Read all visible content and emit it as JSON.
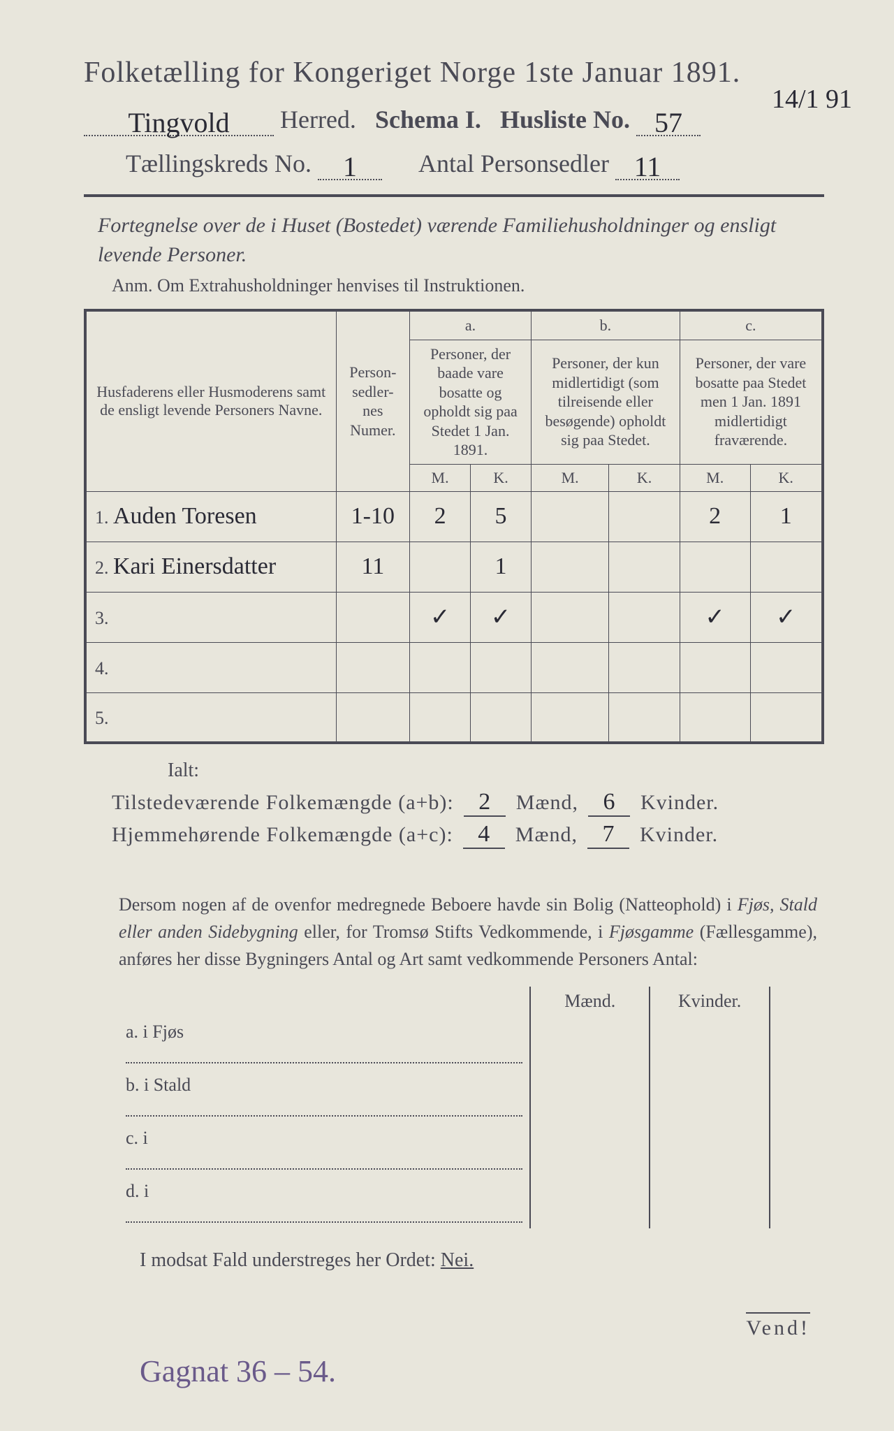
{
  "header": {
    "title": "Folketælling for Kongeriget Norge 1ste Januar 1891.",
    "herred_value": "Tingvold",
    "herred_label": "Herred.",
    "schema_label": "Schema I.",
    "husliste_label": "Husliste No.",
    "husliste_value": "57",
    "side_date": "14/1 91",
    "kreds_label": "Tællingskreds No.",
    "kreds_value": "1",
    "antal_label": "Antal Personsedler",
    "antal_value": "11"
  },
  "subtitle": "Fortegnelse over de i Huset (Bostedet) værende Familiehusholdninger og ensligt levende Personer.",
  "anm": "Anm.  Om Extrahusholdninger henvises til Instruktionen.",
  "table": {
    "col_name": "Husfaderens eller Husmoderens samt de ensligt levende Personers Navne.",
    "col_num": "Person-sedler-nes Numer.",
    "col_a_top": "a.",
    "col_a": "Personer, der baade vare bosatte og opholdt sig paa Stedet 1 Jan. 1891.",
    "col_b_top": "b.",
    "col_b": "Personer, der kun midlertidigt (som tilreisende eller besøgende) opholdt sig paa Stedet.",
    "col_c_top": "c.",
    "col_c": "Personer, der vare bosatte paa Stedet men 1 Jan. 1891 midlertidigt fraværende.",
    "m": "M.",
    "k": "K.",
    "rows": [
      {
        "n": "1.",
        "name": "Auden Toresen",
        "num": "1-10",
        "am": "2",
        "ak": "5",
        "bm": "",
        "bk": "",
        "cm": "2",
        "ck": "1"
      },
      {
        "n": "2.",
        "name": "Kari Einersdatter",
        "num": "11",
        "am": "",
        "ak": "1",
        "bm": "",
        "bk": "",
        "cm": "",
        "ck": ""
      },
      {
        "n": "3.",
        "name": "",
        "num": "",
        "am": "✓",
        "ak": "✓",
        "bm": "",
        "bk": "",
        "cm": "✓",
        "ck": "✓"
      },
      {
        "n": "4.",
        "name": "",
        "num": "",
        "am": "",
        "ak": "",
        "bm": "",
        "bk": "",
        "cm": "",
        "ck": ""
      },
      {
        "n": "5.",
        "name": "",
        "num": "",
        "am": "",
        "ak": "",
        "bm": "",
        "bk": "",
        "cm": "",
        "ck": ""
      }
    ]
  },
  "ialt": "Ialt:",
  "totals": {
    "line1_label": "Tilstedeværende Folkemængde (a+b):",
    "line1_m": "2",
    "line1_k": "6",
    "line2_label": "Hjemmehørende Folkemængde (a+c):",
    "line2_m": "4",
    "line2_k": "7",
    "maend": "Mænd,",
    "kvinder": "Kvinder."
  },
  "para": "Dersom nogen af de ovenfor medregnede Beboere havde sin Bolig (Natteophold) i Fjøs, Stald eller anden Sidebygning eller, for Tromsø Stifts Vedkommende, i Fjøsgamme (Fællesgamme), anføres her disse Bygningers Antal og Art samt vedkommende Personers Antal:",
  "outbuildings": {
    "maend": "Mænd.",
    "kvinder": "Kvinder.",
    "rows": [
      {
        "label": "a.  i      Fjøs"
      },
      {
        "label": "b.  i      Stald"
      },
      {
        "label": "c.  i"
      },
      {
        "label": "d.  i"
      }
    ]
  },
  "nei_line": "I modsat Fald understreges her Ordet:",
  "nei_word": "Nei.",
  "vend": "Vend!",
  "bottom_note": "Gagnat 36 – 54."
}
